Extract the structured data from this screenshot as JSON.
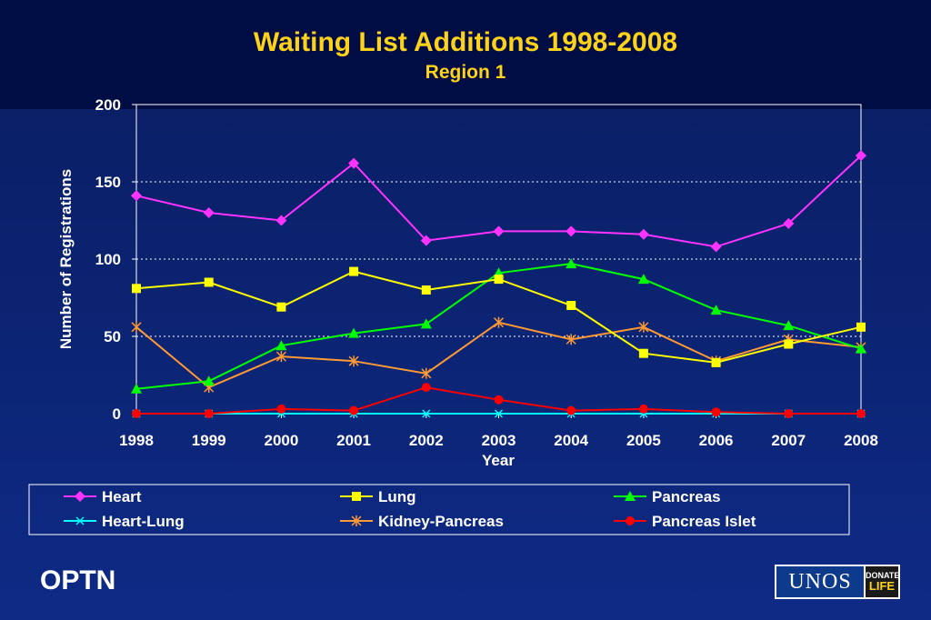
{
  "header": {
    "title": "Waiting List Additions 1998-2008",
    "subtitle": "Region 1"
  },
  "footer": {
    "left_label": "OPTN",
    "logo_text": "UNOS",
    "logo_badge_top": "DONATE",
    "logo_badge_bottom": "LIFE"
  },
  "colors": {
    "background": "#0e2a85",
    "title": "#ffd21a",
    "axis_text": "#ffffff"
  },
  "chart_data": {
    "type": "line",
    "title": "Waiting List Additions 1998-2008",
    "subtitle": "Region 1",
    "xlabel": "Year",
    "ylabel": "Number of Registrations",
    "categories": [
      "1998",
      "1999",
      "2000",
      "2001",
      "2002",
      "2003",
      "2004",
      "2005",
      "2006",
      "2007",
      "2008"
    ],
    "yticks": [
      "0",
      "50",
      "100",
      "150",
      "200"
    ],
    "ylim": [
      0,
      200
    ],
    "grid": "horizontal dotted",
    "legend_position": "bottom",
    "series": [
      {
        "name": "Heart",
        "color": "#ff33ff",
        "marker": "diamond",
        "values": [
          141,
          130,
          125,
          162,
          112,
          118,
          118,
          116,
          108,
          123,
          167
        ]
      },
      {
        "name": "Lung",
        "color": "#ffff00",
        "marker": "square",
        "values": [
          81,
          85,
          69,
          92,
          80,
          87,
          70,
          39,
          33,
          45,
          56
        ]
      },
      {
        "name": "Pancreas",
        "color": "#00ff00",
        "marker": "triangle",
        "values": [
          16,
          21,
          44,
          52,
          58,
          91,
          97,
          87,
          67,
          57,
          42
        ]
      },
      {
        "name": "Heart-Lung",
        "color": "#00ffff",
        "marker": "x",
        "values": [
          0,
          0,
          0,
          0,
          0,
          0,
          0,
          0,
          0,
          0,
          0
        ]
      },
      {
        "name": "Kidney-Pancreas",
        "color": "#ff9933",
        "marker": "star",
        "values": [
          56,
          17,
          37,
          34,
          26,
          59,
          48,
          56,
          34,
          48,
          43
        ]
      },
      {
        "name": "Pancreas Islet",
        "color": "#ff0000",
        "marker": "circle",
        "values": [
          0,
          0,
          3,
          2,
          17,
          9,
          2,
          3,
          1,
          0,
          0
        ]
      }
    ]
  }
}
